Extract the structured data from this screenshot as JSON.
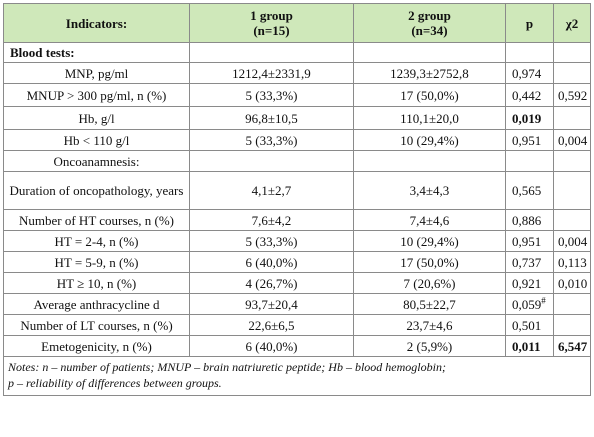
{
  "header": {
    "indicators": "Indicators:",
    "group1": "1 group",
    "group1_n": "(n=15)",
    "group2": "2 group",
    "group2_n": "(n=34)",
    "p": "p",
    "chi2": "χ2"
  },
  "sections": {
    "blood_tests": "Blood tests:",
    "oncoanamnesis": "Oncoanamnesis:"
  },
  "rows": [
    {
      "label": "MNP, pg/ml",
      "g1": "1212,4±2331,9",
      "g2": "1239,3±2752,8",
      "p": "0,974",
      "chi": ""
    },
    {
      "label": "MNUP > 300 pg/ml, n (%)",
      "g1": "5 (33,3%)",
      "g2": "17 (50,0%)",
      "p": "0,442",
      "chi": "0,592"
    },
    {
      "label": "Hb, g/l",
      "g1": "96,8±10,5",
      "g2": "110,1±20,0",
      "p": "0,019",
      "chi": ""
    },
    {
      "label": "Hb < 110 g/l",
      "g1": "5 (33,3%)",
      "g2": "10 (29,4%)",
      "p": "0,951",
      "chi": "0,004"
    },
    {
      "label": "Duration of oncopathology, years",
      "g1": "4,1±2,7",
      "g2": "3,4±4,3",
      "p": "0,565",
      "chi": ""
    },
    {
      "label": "Number of HT courses, n (%)",
      "g1": "7,6±4,2",
      "g2": "7,4±4,6",
      "p": "0,886",
      "chi": ""
    },
    {
      "label": "HT = 2-4, n (%)",
      "g1": "5 (33,3%)",
      "g2": "10 (29,4%)",
      "p": "0,951",
      "chi": "0,004"
    },
    {
      "label": "HT = 5-9, n (%)",
      "g1": "6 (40,0%)",
      "g2": "17 (50,0%)",
      "p": "0,737",
      "chi": "0,113"
    },
    {
      "label": "HT ≥ 10, n (%)",
      "g1": "4 (26,7%)",
      "g2": "7 (20,6%)",
      "p": "0,921",
      "chi": "0,010"
    },
    {
      "label": "Average anthracycline d",
      "g1": "93,7±20,4",
      "g2": "80,5±22,7",
      "p": "0,059",
      "p_sup": "#",
      "chi": ""
    },
    {
      "label": "Number of LT courses, n (%)",
      "g1": "22,6±6,5",
      "g2": "23,7±4,6",
      "p": "0,501",
      "chi": ""
    },
    {
      "label": "Emetogenicity, n (%)",
      "g1": "6 (40,0%)",
      "g2": "2 (5,9%)",
      "p": "0,011",
      "chi": "6,547"
    }
  ],
  "notes": {
    "line1": "Notes: n – number of patients; MNUP – brain natriuretic peptide; Hb – blood hemoglobin;",
    "line2": "p – reliability of differences between groups."
  },
  "colors": {
    "header_bg": "#cfe8ba",
    "border": "#8a8a8a"
  }
}
